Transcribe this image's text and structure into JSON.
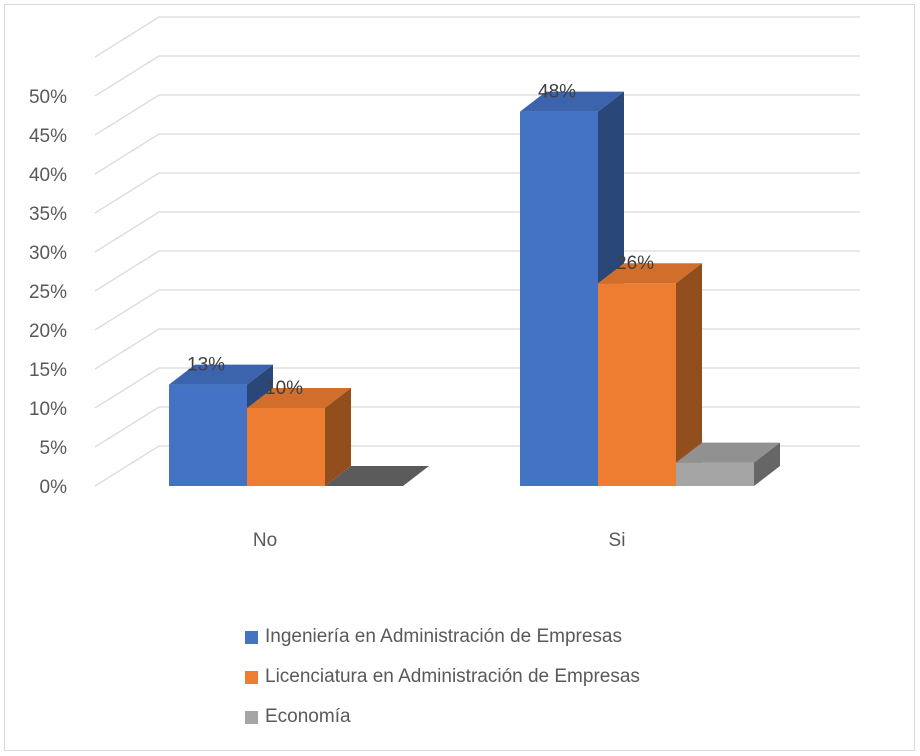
{
  "chart_data": {
    "type": "bar",
    "style": "3d-clustered",
    "categories": [
      "No",
      "Si"
    ],
    "series": [
      {
        "name": "Ingeniería en Administración de Empresas",
        "values": [
          13,
          48
        ],
        "labels": [
          "13%",
          "48%"
        ],
        "color": "#4472C4"
      },
      {
        "name": "Licenciatura en Administración de Empresas",
        "values": [
          10,
          26
        ],
        "labels": [
          "10%",
          "26%"
        ],
        "color": "#ED7D31"
      },
      {
        "name": "Economía",
        "values": [
          0,
          3
        ],
        "color": "#A5A5A5"
      }
    ],
    "ylim": [
      0,
      50
    ],
    "yticks": [
      "0%",
      "5%",
      "10%",
      "15%",
      "20%",
      "25%",
      "30%",
      "35%",
      "40%",
      "45%",
      "50%"
    ],
    "grid": true,
    "legend": "bottom"
  }
}
